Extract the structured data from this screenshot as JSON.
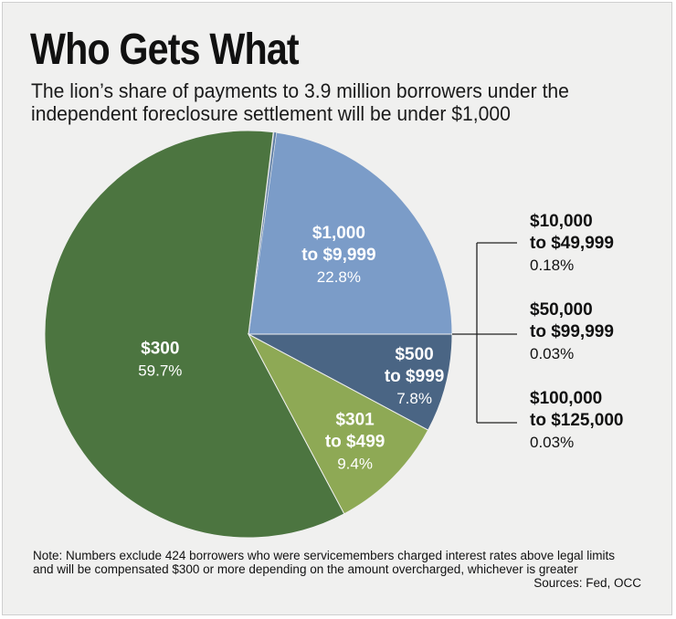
{
  "title": "Who Gets What",
  "subtitle": "The lion’s share of payments to 3.9 million borrowers under the independent foreclosure settlement will be under $1,000",
  "note": "Note: Numbers exclude 424 borrowers who were servicemembers charged interest rates above legal limits and will be compensated $300 or more depending on the amount overcharged, whichever is greater",
  "source": "Sources: Fed, OCC",
  "chart_data": {
    "type": "pie",
    "title": "Who Gets What",
    "slices": [
      {
        "label_lines": [
          "$1,000",
          "to $9,999"
        ],
        "value": 22.8,
        "pct_label": "22.8%",
        "color": "#7b9cc8",
        "callout": false
      },
      {
        "label_lines": [
          "$10,000",
          "to $49,999"
        ],
        "value": 0.18,
        "pct_label": "0.18%",
        "color": "#5f7ea6",
        "callout": true
      },
      {
        "label_lines": [
          "$50,000",
          "to $99,999"
        ],
        "value": 0.03,
        "pct_label": "0.03%",
        "color": "#4a6584",
        "callout": true
      },
      {
        "label_lines": [
          "$100,000",
          "to $125,000"
        ],
        "value": 0.03,
        "pct_label": "0.03%",
        "color": "#3a5a78",
        "callout": true
      },
      {
        "label_lines": [
          "$300"
        ],
        "value": 59.7,
        "pct_label": "59.7%",
        "color": "#4c7540",
        "callout": false
      },
      {
        "label_lines": [
          "$301",
          "to $499"
        ],
        "value": 9.4,
        "pct_label": "9.4%",
        "color": "#8ea955",
        "callout": false
      },
      {
        "label_lines": [
          "$500",
          "to $999"
        ],
        "value": 7.8,
        "pct_label": "7.8%",
        "color": "#4a6584",
        "callout": false
      }
    ]
  }
}
